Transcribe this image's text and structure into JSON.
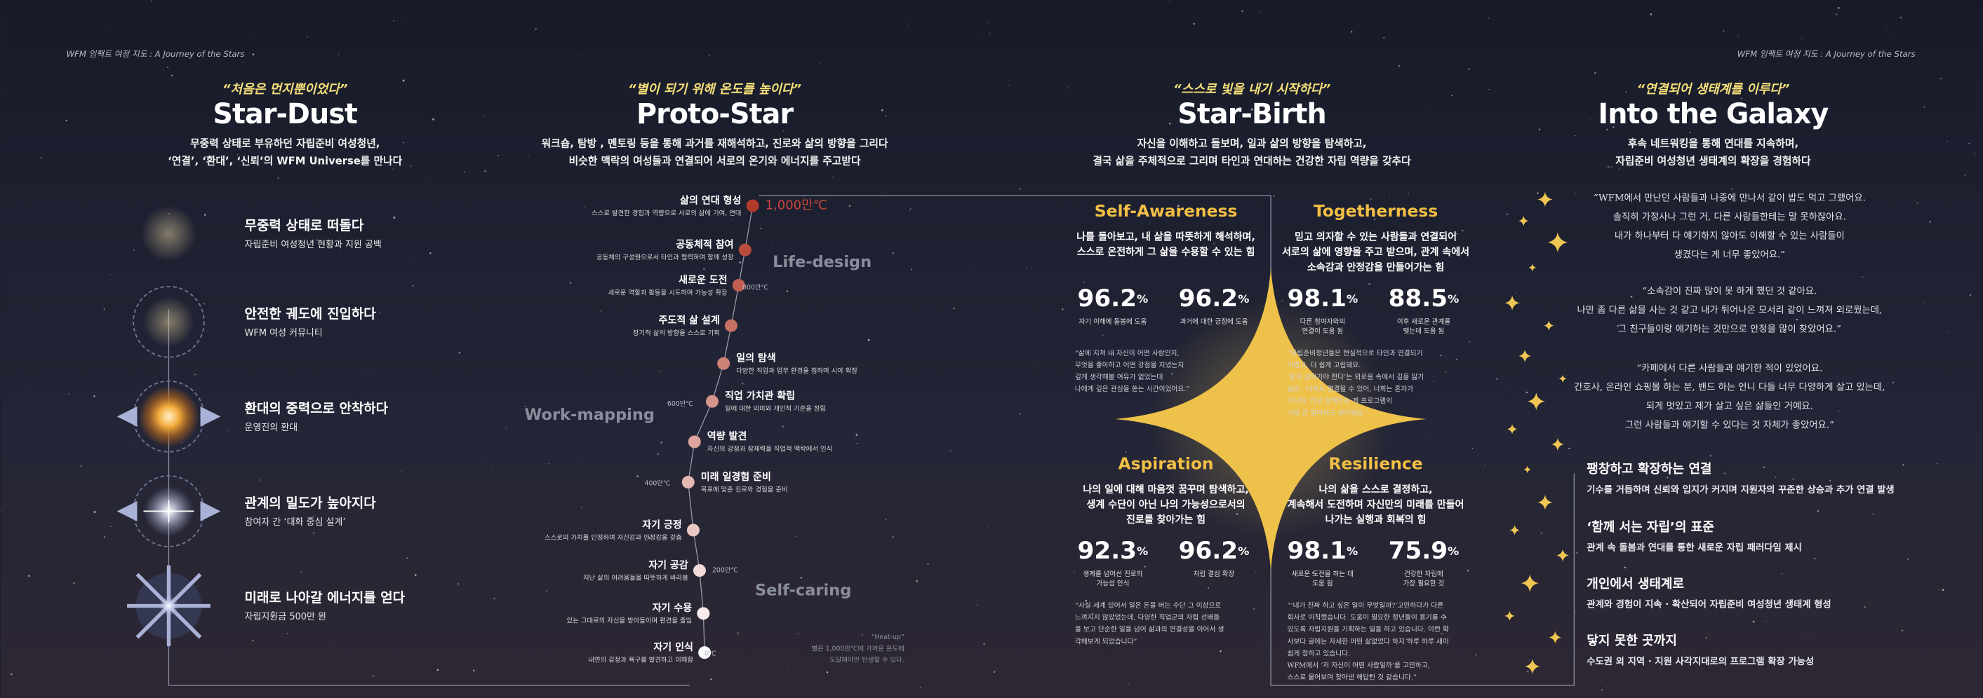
{
  "header": {
    "left": "WFM 임팩트 여정 지도 : A Journey of the Stars",
    "right": "WFM 임팩트 여정 지도 : A Journey of the Stars"
  },
  "sections": [
    {
      "quote": "“처음은 먼지뿐이었다”",
      "title": "Star-Dust",
      "description": [
        "무중력 상태로 부유하던 자립준비 여성청년,",
        "‘연결’, ‘환대’, ‘신뢰’의 WFM Universe를 만나다"
      ]
    },
    {
      "quote": "“별이 되기 위해 온도를 높이다”",
      "title": "Proto-Star",
      "description": [
        "워크숍, 탐방 , 멘토링 등을 통해 과거를 재해석하고, 진로와 삶의 방향을 그리다",
        "비슷한 맥락의 여성들과 연결되어 서로의 온기와 에너지를 주고받다"
      ]
    },
    {
      "quote": "“스스로 빛을 내기 시작하다”",
      "title": "Star-Birth",
      "description": [
        "자신을 이해하고 돌보며, 일과 삶의 방향을 탐색하고,",
        "결국 삶을 주체적으로 그리며 타인과 연대하는 건강한 자립 역량을 갖추다"
      ]
    },
    {
      "quote": "“연결되어 생태계를 이루다”",
      "title": "Into the Galaxy",
      "description": [
        "후속 네트워킹을 통해 연대를 지속하며,",
        "자립준비 여성청년 생태계의 확장을 경험하다"
      ]
    }
  ],
  "stages": [
    {
      "title": "무중력 상태로 떠돌다",
      "description": "자립준비 여성청년 현황과 지원 공백"
    },
    {
      "title": "안전한 궤도에 진입하다",
      "description": "WFM 여성 커뮤니티"
    },
    {
      "title": "환대의 중력으로 안착하다",
      "description": "운영진의 환대"
    },
    {
      "title": "관계의 밀도가 높아지다",
      "description": "참여자 간 ‘대화 중심 설계’"
    },
    {
      "title": "미래로 나아갈 에너지를 얻다",
      "description": "자립지원금 500만 원"
    }
  ],
  "steps": [
    {
      "title": "삶의 연대 형성",
      "description": "스스로 발견한 경험과 역량으로 서로의 삶에 기여, 연대"
    },
    {
      "title": "공동체적 참여",
      "description": "공동체의 구성원으로서 타인과 협력하며 함께 성장"
    },
    {
      "title": "새로운 도전",
      "description": "새로운 역할과 활동을 시도하며 가능성 확장"
    },
    {
      "title": "주도적 삶 설계",
      "description": "장기적 삶의 방향을 스스로 기획"
    },
    {
      "title": "일의 탐색",
      "description": "다양한 직업과 업무 환경을 접하며 시야 확장"
    },
    {
      "title": "직업 가치관 확립",
      "description": "일에 대한 의미와 개인적 기준을 정립"
    },
    {
      "title": "역량 발견",
      "description": "자신의 강점과 잠재력을 직업적 맥락에서 인식"
    },
    {
      "title": "미래 일경험 준비",
      "description": "목표에 맞춘 진로와 경험을 준비"
    },
    {
      "title": "자기 긍정",
      "description": "스스로의 가치를 인정하며 자신감과 안정감을 갖춤"
    },
    {
      "title": "자기 공감",
      "description": "지난 삶의 어려움들을 따뜻하게 바라봄"
    },
    {
      "title": "자기 수용",
      "description": "있는 그대로의 자신을 받아들이며 편견을 줄임"
    },
    {
      "title": "자기 인식",
      "description": "내면의 감정과 욕구를 발견하고 이해함"
    }
  ],
  "temperatures": [
    "1,000만℃",
    "800만℃",
    "600만℃",
    "400만℃",
    "200만℃",
    "0℃"
  ],
  "phases": [
    "Life-design",
    "Work-mapping",
    "Self-caring"
  ],
  "heat_note": [
    "“Heat-up”",
    "별은 1,000만℃에 가까운 온도에",
    "도달해야만 탄생할 수 있다."
  ],
  "quadrants": [
    {
      "name": "Self-Awareness",
      "description": [
        "나를 돌아보고, 내 삶을 따뜻하게 해석하며,",
        "스스로 온전하게 그 삶을 수용할 수 있는 힘"
      ],
      "stats": [
        {
          "value": "96.2",
          "unit": "%",
          "label": [
            "자기 이해에 돌봄에 도움"
          ]
        },
        {
          "value": "96.2",
          "unit": "%",
          "label": [
            "과거에 대한 긍정에 도움"
          ]
        }
      ],
      "quote": [
        "“삶에 지쳐 내 자신이 어떤 사람인지,",
        "무엇을 좋아하고 어떤 강점을 지녔는지",
        "깊게 생각해볼 여유가 없었는데",
        "나에게 깊은 관심을 쏟는 시간이었어요.”"
      ]
    },
    {
      "name": "Togetherness",
      "description": [
        "믿고 의지할 수 있는 사람들과 연결되어",
        "서로의 삶에 영향을 주고 받으며, 관계 속에서",
        "소속감과 안정감을 만들어가는 힘"
      ],
      "stats": [
        {
          "value": "98.1",
          "unit": "%",
          "label": [
            "다른 참여자와의",
            "연결이 도움 됨"
          ]
        },
        {
          "value": "88.5",
          "unit": "%",
          "label": [
            "이후 새로운 관계를",
            "맺는데 도움 됨"
          ]
        }
      ],
      "quote": [
        "“자립준비청년들은 현실적으로 타인과 연결되기",
        "어렵고, 더 쉽게 고립돼요.",
        "‘혼자 살아가야 한다’는 외로움 속에서 길을 잃기",
        "쉽죠. ‘너희도 연결될 수 있어, 너희는 혼자가",
        "아니야.’라고 말해주는 게 프로그램의",
        "가장 큰 힘이라고 생각해요.”"
      ]
    },
    {
      "name": "Aspiration",
      "description": [
        "나의 일에 대해 마음껏 꿈꾸며 탐색하고,",
        "생계 수단이 아닌 나의 가능성으로서의",
        "진로를 찾아가는 힘"
      ],
      "stats": [
        {
          "value": "92.3",
          "unit": "%",
          "label": [
            "생계를 넘어선 진로의",
            "가능성 인식"
          ]
        },
        {
          "value": "96.2",
          "unit": "%",
          "label": [
            "자립 결심 확장"
          ]
        }
      ],
      "quote": [
        "“사실 세계 있어서 일은 돈을 버는 수단 그 이상으로",
        "느껴지지 않았었는데, 다양한 직업군의 자립 선배들",
        "을 보고 단순한 일을 넘어 삶과의 연결성을 이어서 생",
        "각해보게 되었습니다”"
      ]
    },
    {
      "name": "Resilience",
      "description": [
        "나의 삶을 스스로 결정하고,",
        "계속해서 도전하며 자신만의 미래를 만들어",
        "나가는 실행과 회복의 힘"
      ],
      "stats": [
        {
          "value": "98.1",
          "unit": "%",
          "label": [
            "새로운 도전을 하는 데",
            "도움 됨"
          ]
        },
        {
          "value": "75.9",
          "unit": "%",
          "label": [
            "건강한 자립에",
            "가장 필요한 것"
          ]
        }
      ],
      "quote": [
        "“‘내가 진짜 하고 싶은 일이 무엇일까?’고민하다가 다른",
        "회사로 이직했습니다. 도움이 필요한 청년들이 용기를 수",
        "있도록 자립지원을 기획하는 일을 하고 있습니다. 이런 확",
        "사보다 글에는 자세한 어떤 삶없었다 하지 하루 하루 새이",
        "쉽게 정하고 있습니다.",
        "WFM에서 ‘저 자신이 어떤 사람일까’를 고민하고,",
        "스스로 물어보며 찾아낸 해답인 것 같습니다.”"
      ]
    }
  ],
  "testimonials": [
    [
      "“WFM에서 만난던 사람들과 나중에 만나서 같이 밥도 먹고 그랬어요.",
      "솔직히 가정사나 그런 거, 다른 사람들한테는 말 못하잖아요.",
      "내가 하나부터 다 얘기하지 않아도 이해할 수 있는 사람들이",
      "생겼다는 게 너무 좋았어요.”"
    ],
    [
      "“소속감이 진짜 많이 못 하게 했던 것 같아요.",
      "나만 좀 다른 삶을 사는 것 같고 내가 튀어나온 모서리 같이 느껴져 외로웠는데,",
      "그 친구들이랑 얘기하는 것만으로 안정을 많이 찾았어요.”"
    ],
    [
      "“카페에서 다른 사람들과 얘기한 적이 있었어요.",
      "간호사, 온라인 쇼핑몰 하는 분, 밴드 하는 언니 다들 너무 다양하게 살고 있는데,",
      "되게 멋있고 제가 살고 싶은 삶들인 거예요.",
      "그런 사람들과 얘기할 수 있다는 것 자체가 좋았어요.”"
    ]
  ],
  "outcomes": [
    {
      "title": "팽창하고 확장하는 연결",
      "description": "기수를 거듭하며 신뢰와 입지가 커지며 지원자의 꾸준한 상승과 추가 연결 발생"
    },
    {
      "title": "‘함께 서는 자립’의 표준",
      "description": "관계 속 돌봄과 연대를 통한 새로운 자립 패러다임 제시"
    },
    {
      "title": "개인에서 생태계로",
      "description": "관계와 경험이 지속 · 확산되어 자립준비 여성청년 생태계 형성"
    },
    {
      "title": "닿지 못한 곳까지",
      "description": "수도권 외 지역 · 지원 사각지대로의 프로그램 확장 가능성"
    }
  ]
}
